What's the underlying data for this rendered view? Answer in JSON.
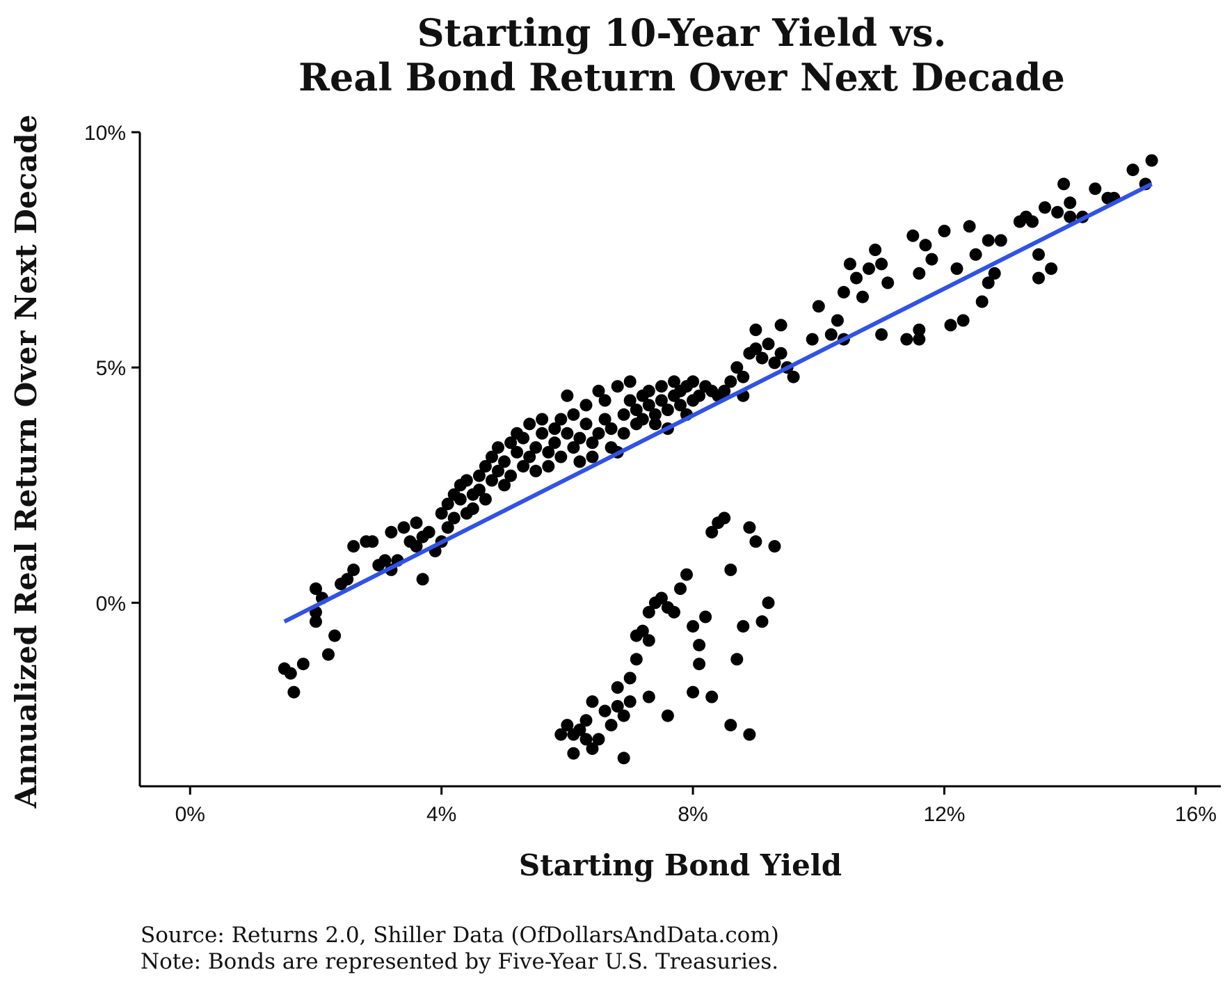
{
  "chart_data": {
    "type": "scatter",
    "title_line1": "Starting 10-Year Yield vs.",
    "title_line2": "Real Bond Return Over Next Decade",
    "xlabel": "Starting Bond Yield",
    "ylabel": "Annualized Real Return Over Next Decade",
    "x_unit": "%",
    "y_unit": "%",
    "xlim": [
      -0.8,
      16.4
    ],
    "ylim": [
      -3.9,
      10.0
    ],
    "x_ticks": [
      {
        "value": 0,
        "label": "0%"
      },
      {
        "value": 4,
        "label": "4%"
      },
      {
        "value": 8,
        "label": "8%"
      },
      {
        "value": 12,
        "label": "12%"
      },
      {
        "value": 16,
        "label": "16%"
      }
    ],
    "y_ticks": [
      {
        "value": 0,
        "label": "0%"
      },
      {
        "value": 5,
        "label": "5%"
      },
      {
        "value": 10,
        "label": "10%"
      }
    ],
    "grid": false,
    "legend": "none",
    "colors": {
      "points": "#000000",
      "trend": "#3152e6"
    },
    "trend_line": {
      "x": [
        1.5,
        15.3
      ],
      "y": [
        -0.4,
        8.9
      ]
    },
    "points": [
      [
        1.5,
        -1.4
      ],
      [
        1.6,
        -1.5
      ],
      [
        1.65,
        -1.9
      ],
      [
        1.8,
        -1.3
      ],
      [
        2.0,
        -0.4
      ],
      [
        2.0,
        0.3
      ],
      [
        2.1,
        0.1
      ],
      [
        2.2,
        -1.1
      ],
      [
        2.3,
        -0.7
      ],
      [
        2.0,
        -0.2
      ],
      [
        2.4,
        0.4
      ],
      [
        2.5,
        0.5
      ],
      [
        2.6,
        0.7
      ],
      [
        2.6,
        1.2
      ],
      [
        2.8,
        1.3
      ],
      [
        2.9,
        1.3
      ],
      [
        3.0,
        0.8
      ],
      [
        3.1,
        0.9
      ],
      [
        3.2,
        0.7
      ],
      [
        3.3,
        0.9
      ],
      [
        3.2,
        1.5
      ],
      [
        3.4,
        1.6
      ],
      [
        3.5,
        1.3
      ],
      [
        3.6,
        1.7
      ],
      [
        3.6,
        1.2
      ],
      [
        3.7,
        1.4
      ],
      [
        3.7,
        0.5
      ],
      [
        3.8,
        1.5
      ],
      [
        3.9,
        1.1
      ],
      [
        4.0,
        1.3
      ],
      [
        4.0,
        1.9
      ],
      [
        4.1,
        1.6
      ],
      [
        4.1,
        2.1
      ],
      [
        4.2,
        1.8
      ],
      [
        4.2,
        2.3
      ],
      [
        4.3,
        2.2
      ],
      [
        4.3,
        2.5
      ],
      [
        4.4,
        1.9
      ],
      [
        4.4,
        2.6
      ],
      [
        4.5,
        2.3
      ],
      [
        4.5,
        2.0
      ],
      [
        4.6,
        2.4
      ],
      [
        4.6,
        2.7
      ],
      [
        4.7,
        2.2
      ],
      [
        4.7,
        2.9
      ],
      [
        4.8,
        2.6
      ],
      [
        4.8,
        3.1
      ],
      [
        4.9,
        2.8
      ],
      [
        4.9,
        3.3
      ],
      [
        5.0,
        2.5
      ],
      [
        5.0,
        3.0
      ],
      [
        5.1,
        3.4
      ],
      [
        5.1,
        2.7
      ],
      [
        5.2,
        3.2
      ],
      [
        5.2,
        3.6
      ],
      [
        5.3,
        2.9
      ],
      [
        5.3,
        3.5
      ],
      [
        5.4,
        3.1
      ],
      [
        5.4,
        3.8
      ],
      [
        5.5,
        3.3
      ],
      [
        5.5,
        2.8
      ],
      [
        5.6,
        3.6
      ],
      [
        5.6,
        3.9
      ],
      [
        5.7,
        3.2
      ],
      [
        5.7,
        2.9
      ],
      [
        5.8,
        3.7
      ],
      [
        5.8,
        3.4
      ],
      [
        5.9,
        3.9
      ],
      [
        5.9,
        3.1
      ],
      [
        6.0,
        4.4
      ],
      [
        6.0,
        3.6
      ],
      [
        6.1,
        3.3
      ],
      [
        6.1,
        4.0
      ],
      [
        6.2,
        3.5
      ],
      [
        6.2,
        3.0
      ],
      [
        6.3,
        3.8
      ],
      [
        6.3,
        4.2
      ],
      [
        6.4,
        3.4
      ],
      [
        6.4,
        3.1
      ],
      [
        6.5,
        3.6
      ],
      [
        6.5,
        4.5
      ],
      [
        6.6,
        3.9
      ],
      [
        6.6,
        4.3
      ],
      [
        6.7,
        3.3
      ],
      [
        6.7,
        3.7
      ],
      [
        6.8,
        4.6
      ],
      [
        6.8,
        3.2
      ],
      [
        6.9,
        4.0
      ],
      [
        6.9,
        3.6
      ],
      [
        7.0,
        4.3
      ],
      [
        7.0,
        4.7
      ],
      [
        7.1,
        4.1
      ],
      [
        7.1,
        3.8
      ],
      [
        7.2,
        4.4
      ],
      [
        7.2,
        3.9
      ],
      [
        7.3,
        4.2
      ],
      [
        7.3,
        4.5
      ],
      [
        7.4,
        3.8
      ],
      [
        7.4,
        4.0
      ],
      [
        7.5,
        4.3
      ],
      [
        7.5,
        4.6
      ],
      [
        7.6,
        4.1
      ],
      [
        7.6,
        3.7
      ],
      [
        7.7,
        4.4
      ],
      [
        7.7,
        4.7
      ],
      [
        7.8,
        4.2
      ],
      [
        7.8,
        4.5
      ],
      [
        7.9,
        4.0
      ],
      [
        7.9,
        4.6
      ],
      [
        8.0,
        4.3
      ],
      [
        8.0,
        4.7
      ],
      [
        8.1,
        4.4
      ],
      [
        8.2,
        4.6
      ],
      [
        8.3,
        4.5
      ],
      [
        8.4,
        4.4
      ],
      [
        8.5,
        4.5
      ],
      [
        8.6,
        4.7
      ],
      [
        8.7,
        5.0
      ],
      [
        8.8,
        4.4
      ],
      [
        8.8,
        4.8
      ],
      [
        8.9,
        5.3
      ],
      [
        9.0,
        5.4
      ],
      [
        9.0,
        5.8
      ],
      [
        9.1,
        5.2
      ],
      [
        9.2,
        5.5
      ],
      [
        9.3,
        5.1
      ],
      [
        9.4,
        5.3
      ],
      [
        9.5,
        5.0
      ],
      [
        9.6,
        4.8
      ],
      [
        9.4,
        5.9
      ],
      [
        9.9,
        5.6
      ],
      [
        10.0,
        6.3
      ],
      [
        10.2,
        5.7
      ],
      [
        10.3,
        6.0
      ],
      [
        10.4,
        5.6
      ],
      [
        10.4,
        6.6
      ],
      [
        10.5,
        7.2
      ],
      [
        10.6,
        6.9
      ],
      [
        10.7,
        6.5
      ],
      [
        10.8,
        7.1
      ],
      [
        10.9,
        7.5
      ],
      [
        11.0,
        7.2
      ],
      [
        11.1,
        6.8
      ],
      [
        11.0,
        5.7
      ],
      [
        11.5,
        7.8
      ],
      [
        11.6,
        7.0
      ],
      [
        11.6,
        5.8
      ],
      [
        11.7,
        7.6
      ],
      [
        11.8,
        7.3
      ],
      [
        12.0,
        7.9
      ],
      [
        12.1,
        5.9
      ],
      [
        12.2,
        7.1
      ],
      [
        12.3,
        6.0
      ],
      [
        12.4,
        8.0
      ],
      [
        12.5,
        7.4
      ],
      [
        12.6,
        6.4
      ],
      [
        12.7,
        7.7
      ],
      [
        12.8,
        7.0
      ],
      [
        12.9,
        7.7
      ],
      [
        13.2,
        8.1
      ],
      [
        13.3,
        8.2
      ],
      [
        13.5,
        6.9
      ],
      [
        13.6,
        8.4
      ],
      [
        13.8,
        8.3
      ],
      [
        13.9,
        8.9
      ],
      [
        14.0,
        8.5
      ],
      [
        14.2,
        8.2
      ],
      [
        14.4,
        8.8
      ],
      [
        14.6,
        8.6
      ],
      [
        14.7,
        8.6
      ],
      [
        15.0,
        9.2
      ],
      [
        15.2,
        8.9
      ],
      [
        15.3,
        9.4
      ],
      [
        13.7,
        7.1
      ],
      [
        13.5,
        7.4
      ],
      [
        11.6,
        5.6
      ],
      [
        11.4,
        5.6
      ],
      [
        12.7,
        6.8
      ],
      [
        13.4,
        8.1
      ],
      [
        14.0,
        8.2
      ],
      [
        5.9,
        -2.8
      ],
      [
        6.0,
        -2.6
      ],
      [
        6.1,
        -2.8
      ],
      [
        6.1,
        -3.2
      ],
      [
        6.2,
        -2.7
      ],
      [
        6.3,
        -2.5
      ],
      [
        6.3,
        -2.9
      ],
      [
        6.4,
        -2.1
      ],
      [
        6.4,
        -3.1
      ],
      [
        6.5,
        -2.9
      ],
      [
        6.6,
        -2.3
      ],
      [
        6.7,
        -2.6
      ],
      [
        6.8,
        -2.2
      ],
      [
        6.8,
        -1.8
      ],
      [
        6.9,
        -2.4
      ],
      [
        6.9,
        -3.3
      ],
      [
        7.0,
        -1.6
      ],
      [
        7.1,
        -1.2
      ],
      [
        7.1,
        -0.7
      ],
      [
        7.2,
        -0.6
      ],
      [
        7.3,
        -0.8
      ],
      [
        7.3,
        -0.2
      ],
      [
        7.4,
        0.0
      ],
      [
        7.5,
        0.1
      ],
      [
        7.6,
        -0.1
      ],
      [
        7.7,
        -0.2
      ],
      [
        7.8,
        0.3
      ],
      [
        7.9,
        0.6
      ],
      [
        8.0,
        -0.5
      ],
      [
        8.1,
        -0.9
      ],
      [
        8.1,
        -1.3
      ],
      [
        8.2,
        -0.3
      ],
      [
        8.3,
        1.5
      ],
      [
        8.4,
        1.7
      ],
      [
        8.5,
        1.8
      ],
      [
        8.6,
        0.7
      ],
      [
        8.7,
        -1.2
      ],
      [
        8.8,
        -0.5
      ],
      [
        8.9,
        1.6
      ],
      [
        9.0,
        1.3
      ],
      [
        9.1,
        -0.4
      ],
      [
        9.2,
        0.0
      ],
      [
        9.3,
        1.2
      ],
      [
        8.9,
        -2.8
      ],
      [
        8.6,
        -2.6
      ],
      [
        8.3,
        -2.0
      ],
      [
        8.0,
        -1.9
      ],
      [
        7.6,
        -2.4
      ],
      [
        7.3,
        -2.0
      ],
      [
        7.0,
        -2.1
      ]
    ]
  },
  "source_note": "Source:  Returns 2.0, Shiller Data (OfDollarsAndData.com)",
  "bonds_note": "Note: Bonds are represented by Five-Year U.S. Treasuries."
}
